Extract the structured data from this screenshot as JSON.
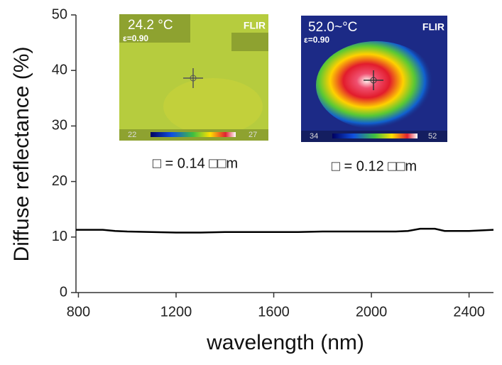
{
  "chart_data": {
    "type": "line",
    "xlabel": "wavelength (nm)",
    "ylabel": "Diffuse reflectance (%)",
    "x": [
      790,
      850,
      900,
      950,
      1000,
      1100,
      1200,
      1300,
      1400,
      1500,
      1600,
      1700,
      1800,
      1900,
      2000,
      2100,
      2150,
      2200,
      2260,
      2300,
      2400,
      2500
    ],
    "series": [
      {
        "name": "reflectance",
        "color": "#000000",
        "values": [
          11.3,
          11.3,
          11.3,
          11.1,
          11.0,
          10.9,
          10.8,
          10.8,
          10.9,
          10.9,
          10.9,
          10.9,
          11.0,
          11.0,
          11.0,
          11.0,
          11.1,
          11.5,
          11.5,
          11.1,
          11.1,
          11.3
        ]
      }
    ],
    "xlim": [
      790,
      2500
    ],
    "xticks": [
      800,
      1200,
      1600,
      2000,
      2400
    ],
    "ylim": [
      0,
      50
    ],
    "yticks": [
      0,
      10,
      20,
      30,
      40,
      50
    ],
    "insets": [
      {
        "temp": "24.2 °C",
        "emissivity": "ε=0.90",
        "brand": "FLIR",
        "scale_min": "22",
        "scale_max": "27",
        "caption": "□ = 0.14 □□m"
      },
      {
        "temp": "52.0~°C",
        "emissivity": "ε=0.90",
        "brand": "FLIR",
        "scale_min": "34",
        "scale_max": "52",
        "caption": "□ = 0.12 □□m"
      }
    ]
  }
}
